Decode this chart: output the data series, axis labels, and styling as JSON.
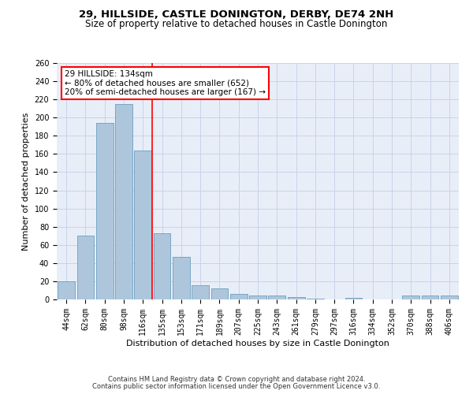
{
  "title1": "29, HILLSIDE, CASTLE DONINGTON, DERBY, DE74 2NH",
  "title2": "Size of property relative to detached houses in Castle Donington",
  "xlabel": "Distribution of detached houses by size in Castle Donington",
  "ylabel": "Number of detached properties",
  "footnote1": "Contains HM Land Registry data © Crown copyright and database right 2024.",
  "footnote2": "Contains public sector information licensed under the Open Government Licence v3.0.",
  "categories": [
    "44sqm",
    "62sqm",
    "80sqm",
    "98sqm",
    "116sqm",
    "135sqm",
    "153sqm",
    "171sqm",
    "189sqm",
    "207sqm",
    "225sqm",
    "243sqm",
    "261sqm",
    "279sqm",
    "297sqm",
    "316sqm",
    "334sqm",
    "352sqm",
    "370sqm",
    "388sqm",
    "406sqm"
  ],
  "values": [
    20,
    70,
    194,
    215,
    164,
    73,
    47,
    16,
    12,
    6,
    4,
    4,
    3,
    1,
    0,
    2,
    0,
    0,
    4,
    4,
    4
  ],
  "bar_color": "#aec6dc",
  "bar_edgecolor": "#6a9fc0",
  "vline_x": 4.5,
  "vline_color": "red",
  "annotation_text": "29 HILLSIDE: 134sqm\n← 80% of detached houses are smaller (652)\n20% of semi-detached houses are larger (167) →",
  "annotation_box_facecolor": "white",
  "annotation_box_edgecolor": "red",
  "ylim": [
    0,
    260
  ],
  "yticks": [
    0,
    20,
    40,
    60,
    80,
    100,
    120,
    140,
    160,
    180,
    200,
    220,
    240,
    260
  ],
  "grid_color": "#c8d4e8",
  "bg_color": "#e8eef8",
  "title1_fontsize": 9.5,
  "title2_fontsize": 8.5,
  "xlabel_fontsize": 8,
  "ylabel_fontsize": 8,
  "tick_fontsize": 7,
  "annotation_fontsize": 7.5,
  "footnote_fontsize": 6
}
